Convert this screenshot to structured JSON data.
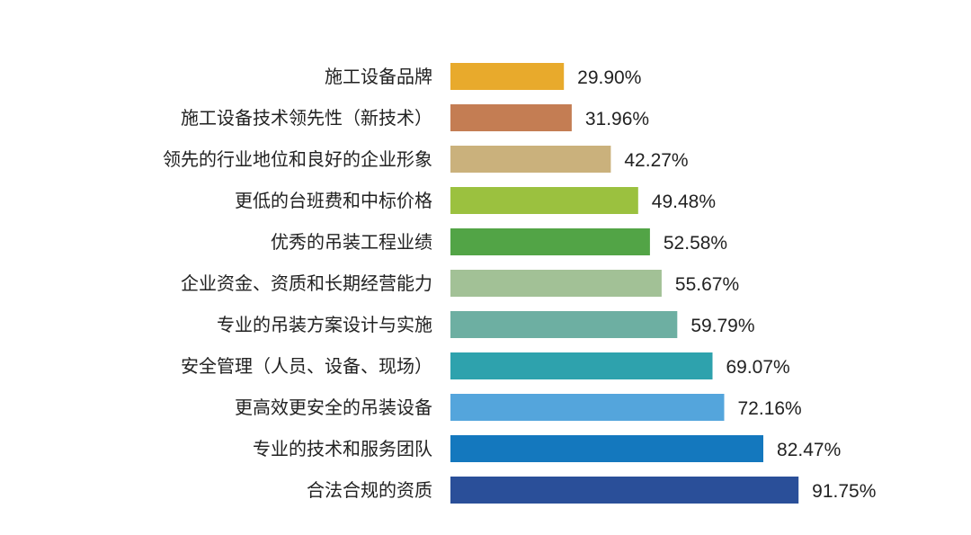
{
  "chart_data": {
    "type": "bar",
    "orientation": "horizontal",
    "title": "",
    "xlabel": "",
    "ylabel": "",
    "xlim": [
      0,
      100
    ],
    "grid": false,
    "legend": "none",
    "categories": [
      "施工设备品牌",
      "施工设备技术领先性（新技术）",
      "领先的行业地位和良好的企业形象",
      "更低的台班费和中标价格",
      "优秀的吊装工程业绩",
      "企业资金、资质和长期经营能力",
      "专业的吊装方案设计与实施",
      "安全管理（人员、设备、现场）",
      "更高效更安全的吊装设备",
      "专业的技术和服务团队",
      "合法合规的资质"
    ],
    "values": [
      29.9,
      31.96,
      42.27,
      49.48,
      52.58,
      55.67,
      59.79,
      69.07,
      72.16,
      82.47,
      91.75
    ],
    "value_labels": [
      "29.90%",
      "31.96%",
      "42.27%",
      "49.48%",
      "52.58%",
      "55.67%",
      "59.79%",
      "69.07%",
      "72.16%",
      "82.47%",
      "91.75%"
    ],
    "colors": [
      "#E8AA2C",
      "#C47D53",
      "#CAB17C",
      "#9BC13F",
      "#52A446",
      "#A2C196",
      "#6DAFA2",
      "#2EA2AD",
      "#54A5DC",
      "#1478BE",
      "#2A4F99"
    ]
  }
}
